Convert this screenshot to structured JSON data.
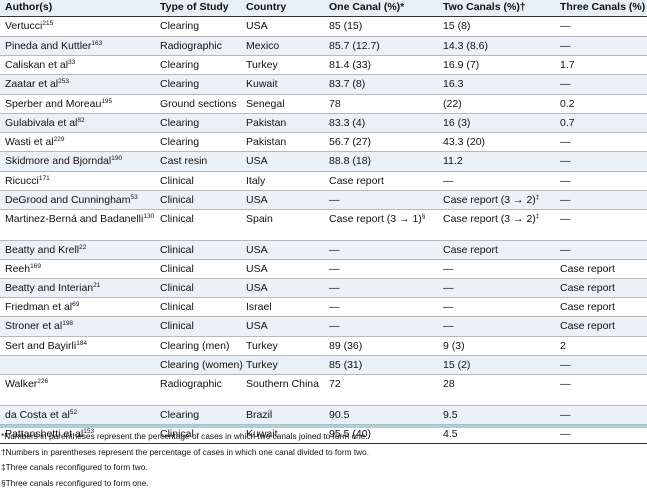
{
  "table": {
    "headers": [
      "Author(s)",
      "Type of Study",
      "Country",
      "One Canal (%)*",
      "Two Canals (%)†",
      "Three Canals (%)"
    ],
    "rows": [
      {
        "author": "Vertucci",
        "ref": "215",
        "type": "Clearing",
        "country": "USA",
        "one": "85 (15)",
        "two": "15 (8)",
        "three": "—"
      },
      {
        "author": "Pineda and Kuttler",
        "ref": "163",
        "type": "Radiographic",
        "country": "Mexico",
        "one": "85.7 (12.7)",
        "two": "14.3 (8.6)",
        "three": "—"
      },
      {
        "author": "Caliskan et al",
        "ref": "33",
        "type": "Clearing",
        "country": "Turkey",
        "one": "81.4 (33)",
        "two": "16.9 (7)",
        "three": "1.7"
      },
      {
        "author": "Zaatar et al",
        "ref": "253",
        "type": "Clearing",
        "country": "Kuwait",
        "one": "83.7 (8)",
        "two": "16.3",
        "three": "—"
      },
      {
        "author": "Sperber and Moreau",
        "ref": "195",
        "type": "Ground sections",
        "country": "Senegal",
        "one": "78",
        "two": "(22)",
        "three": "0.2"
      },
      {
        "author": "Gulabivala et al",
        "ref": "82",
        "type": "Clearing",
        "country": "Pakistan",
        "one": "83.3 (4)",
        "two": "16 (3)",
        "three": "0.7"
      },
      {
        "author": "Wasti et al",
        "ref": "229",
        "type": "Clearing",
        "country": "Pakistan",
        "one": "56.7 (27)",
        "two": "43.3 (20)",
        "three": "—"
      },
      {
        "author": "Skidmore and Bjorndal",
        "ref": "190",
        "type": "Cast resin",
        "country": "USA",
        "one": "88.8 (18)",
        "two": "11.2",
        "three": "—"
      },
      {
        "author": "Ricucci",
        "ref": "171",
        "type": "Clinical",
        "country": "Italy",
        "one": "Case report",
        "two": "—",
        "three": "—"
      },
      {
        "author": "DeGrood and Cunningham",
        "ref": "53",
        "type": "Clinical",
        "country": "USA",
        "one": "—",
        "two": "Case report (3 → 2)",
        "two_sup": "‡",
        "three": "—"
      },
      {
        "author": "Martinez-Berná and Badanelli",
        "ref": "130",
        "type": "Clinical",
        "country": "Spain",
        "one": "Case report (3 → 1)",
        "one_sup": "§",
        "two": "Case report (3 → 2)",
        "two_sup": "‡",
        "three": "—"
      },
      {
        "author": "Beatty and Krell",
        "ref": "22",
        "type": "Clinical",
        "country": "USA",
        "one": "—",
        "two": "Case report",
        "three": "—"
      },
      {
        "author": "Reeh",
        "ref": "169",
        "type": "Clinical",
        "country": "USA",
        "one": "—",
        "two": "—",
        "three": "Case report"
      },
      {
        "author": "Beatty and Interian",
        "ref": "21",
        "type": "Clinical",
        "country": "USA",
        "one": "—",
        "two": "—",
        "three": "Case report"
      },
      {
        "author": "Friedman et al",
        "ref": "69",
        "type": "Clinical",
        "country": "Israel",
        "one": "—",
        "two": "—",
        "three": "Case report"
      },
      {
        "author": "Stroner et al",
        "ref": "198",
        "type": "Clinical",
        "country": "USA",
        "one": "—",
        "two": "—",
        "three": "Case report"
      },
      {
        "author": "Sert and Bayirli",
        "ref": "184",
        "type": "Clearing (men)",
        "country": "Turkey",
        "one": "89 (36)",
        "two": " 9 (3)",
        "three": "2"
      },
      {
        "author": "",
        "ref": "",
        "type": "Clearing (women)",
        "country": "Turkey",
        "one": "85 (31)",
        "two": "15 (2)",
        "three": "—"
      },
      {
        "author": "Walker",
        "ref": "226",
        "type": "Radiographic",
        "country": "Southern China",
        "one": "72",
        "two": "28",
        "three": "—"
      },
      {
        "author": "da Costa et al",
        "ref": "52",
        "type": "Clearing",
        "country": "Brazil",
        "one": "90.5",
        "two": " 9.5",
        "three": "—"
      },
      {
        "author": "Pattanshetti et al",
        "ref": "153",
        "type": "Clinical",
        "country": "Kuwait",
        "one": "95.5 (40)",
        "two": " 4.5",
        "three": "—"
      }
    ]
  },
  "footnotes": [
    "*Numbers in parentheses represent the percentage of cases in which two canals joined to form one.",
    "†Numbers in parentheses represent the percentage of cases in which one canal divided to form two.",
    "‡Three canals reconfigured to form two.",
    "§Three canals reconfigured to form one."
  ]
}
